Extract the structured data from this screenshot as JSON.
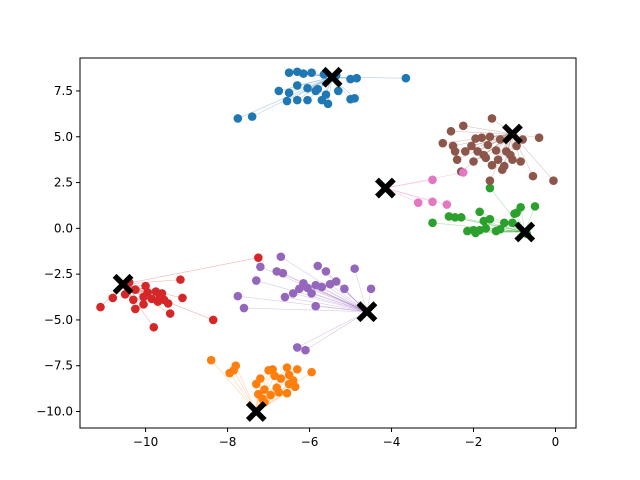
{
  "chart_data": {
    "type": "scatter",
    "title": "",
    "xlabel": "",
    "ylabel": "",
    "xlim": [
      -11.6,
      0.5
    ],
    "ylim": [
      -10.9,
      9.3
    ],
    "grid": false,
    "legend": "none",
    "xticks": [
      -10,
      -8,
      -6,
      -4,
      -2,
      0
    ],
    "yticks": [
      -10.0,
      -7.5,
      -5.0,
      -2.5,
      0.0,
      2.5,
      5.0,
      7.5
    ],
    "xtick_labels": [
      "−10",
      "−8",
      "−6",
      "−4",
      "−2",
      "0"
    ],
    "ytick_labels": [
      "−10.0",
      "−7.5",
      "−5.0",
      "−2.5",
      "0.0",
      "2.5",
      "5.0",
      "7.5"
    ],
    "series": [
      {
        "color": "#1f77b4",
        "centroid": [
          -5.45,
          8.25
        ],
        "points": [
          [
            -6.5,
            8.5
          ],
          [
            -6.3,
            8.55
          ],
          [
            -6.15,
            8.45
          ],
          [
            -5.95,
            8.5
          ],
          [
            -5.65,
            8.4
          ],
          [
            -5.35,
            8.35
          ],
          [
            -5.0,
            8.15
          ],
          [
            -4.85,
            8.2
          ],
          [
            -6.75,
            7.5
          ],
          [
            -6.5,
            7.4
          ],
          [
            -6.3,
            7.8
          ],
          [
            -6.05,
            7.65
          ],
          [
            -5.85,
            7.5
          ],
          [
            -5.6,
            7.3
          ],
          [
            -5.3,
            7.5
          ],
          [
            -6.55,
            6.95
          ],
          [
            -6.3,
            7.0
          ],
          [
            -6.05,
            7.0
          ],
          [
            -5.7,
            7.0
          ],
          [
            -5.55,
            6.8
          ],
          [
            -5.0,
            7.05
          ],
          [
            -4.9,
            7.1
          ],
          [
            -3.65,
            8.2
          ],
          [
            -7.4,
            6.1
          ],
          [
            -7.75,
            6.0
          ],
          [
            -5.8,
            7.6
          ]
        ]
      },
      {
        "color": "#ff7f0e",
        "centroid": [
          -7.3,
          -10.0
        ],
        "points": [
          [
            -8.4,
            -7.2
          ],
          [
            -7.95,
            -7.9
          ],
          [
            -7.85,
            -7.75
          ],
          [
            -7.8,
            -7.5
          ],
          [
            -7.2,
            -8.2
          ],
          [
            -7.3,
            -8.5
          ],
          [
            -7.1,
            -8.8
          ],
          [
            -7.25,
            -9.05
          ],
          [
            -7.1,
            -9.5
          ],
          [
            -7.0,
            -7.75
          ],
          [
            -6.9,
            -7.7
          ],
          [
            -6.85,
            -8.05
          ],
          [
            -6.7,
            -8.2
          ],
          [
            -6.5,
            -8.0
          ],
          [
            -6.4,
            -8.3
          ],
          [
            -6.55,
            -7.6
          ],
          [
            -6.3,
            -7.7
          ],
          [
            -5.95,
            -7.85
          ],
          [
            -6.5,
            -8.5
          ],
          [
            -6.75,
            -8.95
          ],
          [
            -6.55,
            -9.0
          ],
          [
            -6.95,
            -9.1
          ],
          [
            -6.35,
            -8.65
          ],
          [
            -7.15,
            -9.3
          ],
          [
            -6.8,
            -8.7
          ]
        ]
      },
      {
        "color": "#2ca02c",
        "centroid": [
          -0.75,
          -0.2
        ],
        "points": [
          [
            -3.0,
            0.3
          ],
          [
            -2.6,
            0.65
          ],
          [
            -2.45,
            0.6
          ],
          [
            -2.3,
            0.6
          ],
          [
            -2.15,
            -0.15
          ],
          [
            -2.0,
            -0.1
          ],
          [
            -1.95,
            -0.25
          ],
          [
            -1.85,
            0.9
          ],
          [
            -1.75,
            0.4
          ],
          [
            -1.6,
            0.5
          ],
          [
            -1.45,
            -0.15
          ],
          [
            -1.35,
            -0.05
          ],
          [
            -1.25,
            0.3
          ],
          [
            -1.05,
            0.3
          ],
          [
            -1.0,
            0.8
          ],
          [
            -0.95,
            0.85
          ],
          [
            -0.85,
            1.15
          ],
          [
            -0.5,
            1.2
          ],
          [
            -1.6,
            2.2
          ],
          [
            -1.7,
            0.0
          ],
          [
            -1.85,
            -0.1
          ],
          [
            -0.7,
            -0.3
          ]
        ]
      },
      {
        "color": "#d62728",
        "centroid": [
          -10.55,
          -3.05
        ],
        "points": [
          [
            -11.1,
            -4.3
          ],
          [
            -10.8,
            -3.8
          ],
          [
            -10.5,
            -3.6
          ],
          [
            -10.3,
            -3.9
          ],
          [
            -10.25,
            -4.4
          ],
          [
            -10.05,
            -3.75
          ],
          [
            -10.0,
            -3.15
          ],
          [
            -9.95,
            -3.5
          ],
          [
            -9.85,
            -3.85
          ],
          [
            -9.75,
            -3.45
          ],
          [
            -9.7,
            -4.0
          ],
          [
            -9.65,
            -3.7
          ],
          [
            -9.6,
            -3.55
          ],
          [
            -9.55,
            -3.9
          ],
          [
            -9.45,
            -4.1
          ],
          [
            -9.4,
            -4.65
          ],
          [
            -9.15,
            -2.8
          ],
          [
            -9.1,
            -3.8
          ],
          [
            -9.8,
            -5.4
          ],
          [
            -8.35,
            -5.0
          ],
          [
            -7.25,
            -1.6
          ],
          [
            -10.25,
            -3.35
          ],
          [
            -10.05,
            -4.15
          ],
          [
            -10.4,
            -2.95
          ]
        ]
      },
      {
        "color": "#9467bd",
        "centroid": [
          -4.6,
          -4.55
        ],
        "points": [
          [
            -7.75,
            -3.7
          ],
          [
            -7.6,
            -4.35
          ],
          [
            -7.3,
            -2.85
          ],
          [
            -7.2,
            -2.1
          ],
          [
            -6.8,
            -2.35
          ],
          [
            -6.65,
            -2.45
          ],
          [
            -6.7,
            -1.55
          ],
          [
            -6.6,
            -3.75
          ],
          [
            -6.4,
            -3.55
          ],
          [
            -6.25,
            -3.3
          ],
          [
            -6.15,
            -3.0
          ],
          [
            -6.05,
            -3.25
          ],
          [
            -5.95,
            -3.55
          ],
          [
            -5.85,
            -3.1
          ],
          [
            -5.8,
            -2.05
          ],
          [
            -5.7,
            -3.2
          ],
          [
            -5.6,
            -2.35
          ],
          [
            -5.5,
            -3.05
          ],
          [
            -5.35,
            -2.9
          ],
          [
            -5.15,
            -3.3
          ],
          [
            -4.9,
            -2.2
          ],
          [
            -4.5,
            -3.3
          ],
          [
            -5.85,
            -4.25
          ],
          [
            -6.3,
            -6.5
          ],
          [
            -6.1,
            -6.65
          ]
        ]
      },
      {
        "color": "#8c564b",
        "centroid": [
          -1.05,
          5.15
        ],
        "points": [
          [
            -2.75,
            4.65
          ],
          [
            -2.55,
            5.3
          ],
          [
            -2.5,
            4.5
          ],
          [
            -2.45,
            4.2
          ],
          [
            -2.4,
            3.75
          ],
          [
            -2.25,
            5.6
          ],
          [
            -2.2,
            4.2
          ],
          [
            -2.05,
            4.5
          ],
          [
            -2.0,
            3.65
          ],
          [
            -1.9,
            4.2
          ],
          [
            -1.8,
            4.95
          ],
          [
            -1.75,
            4.0
          ],
          [
            -1.7,
            3.85
          ],
          [
            -1.65,
            4.55
          ],
          [
            -1.55,
            3.45
          ],
          [
            -1.45,
            4.25
          ],
          [
            -1.4,
            3.75
          ],
          [
            -1.35,
            4.85
          ],
          [
            -1.3,
            3.2
          ],
          [
            -1.2,
            4.2
          ],
          [
            -1.1,
            4.0
          ],
          [
            -1.05,
            3.75
          ],
          [
            -0.95,
            4.5
          ],
          [
            -0.85,
            3.65
          ],
          [
            -0.8,
            4.85
          ],
          [
            -0.55,
            2.85
          ],
          [
            -0.4,
            4.95
          ],
          [
            -0.05,
            2.6
          ],
          [
            -1.6,
            5.0
          ],
          [
            -1.55,
            6.0
          ],
          [
            -1.6,
            2.6
          ],
          [
            -2.3,
            3.1
          ],
          [
            -1.25,
            3.4
          ],
          [
            -1.95,
            4.9
          ]
        ]
      },
      {
        "color": "#e377c2",
        "centroid": [
          -4.15,
          2.2
        ],
        "points": [
          [
            -3.0,
            2.65
          ],
          [
            -3.35,
            1.4
          ],
          [
            -3.0,
            1.45
          ],
          [
            -2.65,
            1.3
          ],
          [
            -2.25,
            3.05
          ]
        ]
      }
    ]
  }
}
